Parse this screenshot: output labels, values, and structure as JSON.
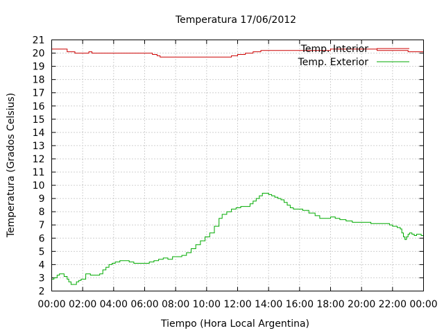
{
  "chart_data": {
    "type": "line",
    "title": "Temperatura 17/06/2012",
    "xlabel": "Tiempo (Hora Local Argentina)",
    "ylabel": "Temperatura (Grados Celsius)",
    "xlim": [
      0,
      24
    ],
    "ylim": [
      2,
      21
    ],
    "x_ticks": [
      "00:00",
      "02:00",
      "04:00",
      "06:00",
      "08:00",
      "10:00",
      "12:00",
      "14:00",
      "16:00",
      "18:00",
      "20:00",
      "22:00",
      "00:00"
    ],
    "y_ticks": [
      2,
      3,
      4,
      5,
      6,
      7,
      8,
      9,
      10,
      11,
      12,
      13,
      14,
      15,
      16,
      17,
      18,
      19,
      20,
      21
    ],
    "grid": true,
    "legend_position": "top-right",
    "series": [
      {
        "name": "Temp. Interior",
        "color": "#cc0000",
        "x": [
          0,
          0.9,
          1.0,
          1.5,
          2.2,
          2.4,
          2.6,
          6.2,
          6.5,
          6.8,
          7.0,
          11.3,
          11.6,
          12.0,
          12.5,
          13.0,
          13.5,
          14.5,
          16.0,
          18.0,
          21.0,
          23.0,
          24.0
        ],
        "y": [
          20.3,
          20.3,
          20.1,
          20.0,
          20.0,
          20.1,
          20.0,
          20.0,
          19.9,
          19.8,
          19.7,
          19.7,
          19.8,
          19.9,
          20.0,
          20.1,
          20.2,
          20.2,
          20.2,
          20.3,
          20.2,
          20.1,
          20.0
        ]
      },
      {
        "name": "Temp. Exterior",
        "color": "#00aa00",
        "x": [
          0,
          0.15,
          0.35,
          0.5,
          0.65,
          0.8,
          1.0,
          1.1,
          1.25,
          1.4,
          1.6,
          1.75,
          1.9,
          2.2,
          2.5,
          2.9,
          3.1,
          3.3,
          3.5,
          3.7,
          3.9,
          4.1,
          4.4,
          4.7,
          5.0,
          5.3,
          5.6,
          6.0,
          6.3,
          6.6,
          6.9,
          7.2,
          7.5,
          7.8,
          8.1,
          8.4,
          8.7,
          9.0,
          9.3,
          9.6,
          9.9,
          10.2,
          10.5,
          10.8,
          11.0,
          11.3,
          11.6,
          11.9,
          12.2,
          12.5,
          12.8,
          13.0,
          13.2,
          13.4,
          13.6,
          13.8,
          14.0,
          14.2,
          14.4,
          14.6,
          14.8,
          15.0,
          15.2,
          15.4,
          15.6,
          15.8,
          16.2,
          16.6,
          17.0,
          17.3,
          17.6,
          18.0,
          18.3,
          18.6,
          19.0,
          19.4,
          19.8,
          20.2,
          20.6,
          21.0,
          21.4,
          21.8,
          22.0,
          22.3,
          22.5,
          22.6,
          22.7,
          22.8,
          22.9,
          23.0,
          23.1,
          23.25,
          23.4,
          23.55,
          23.7,
          23.85,
          24.0
        ],
        "y": [
          2.9,
          3.0,
          3.2,
          3.3,
          3.3,
          3.1,
          2.9,
          2.7,
          2.5,
          2.5,
          2.7,
          2.8,
          2.9,
          3.3,
          3.2,
          3.2,
          3.3,
          3.6,
          3.8,
          4.0,
          4.1,
          4.2,
          4.3,
          4.3,
          4.2,
          4.1,
          4.1,
          4.1,
          4.2,
          4.3,
          4.4,
          4.5,
          4.4,
          4.6,
          4.6,
          4.7,
          4.9,
          5.2,
          5.5,
          5.8,
          6.1,
          6.4,
          6.9,
          7.5,
          7.8,
          8.0,
          8.2,
          8.3,
          8.4,
          8.4,
          8.6,
          8.8,
          9.0,
          9.2,
          9.4,
          9.4,
          9.3,
          9.2,
          9.1,
          9.0,
          8.9,
          8.7,
          8.5,
          8.3,
          8.2,
          8.2,
          8.1,
          7.9,
          7.7,
          7.5,
          7.5,
          7.6,
          7.5,
          7.4,
          7.3,
          7.2,
          7.2,
          7.2,
          7.1,
          7.1,
          7.1,
          7.0,
          6.9,
          6.8,
          6.7,
          6.4,
          6.1,
          5.9,
          6.1,
          6.3,
          6.4,
          6.3,
          6.2,
          6.3,
          6.3,
          6.2,
          6.3
        ]
      }
    ]
  }
}
